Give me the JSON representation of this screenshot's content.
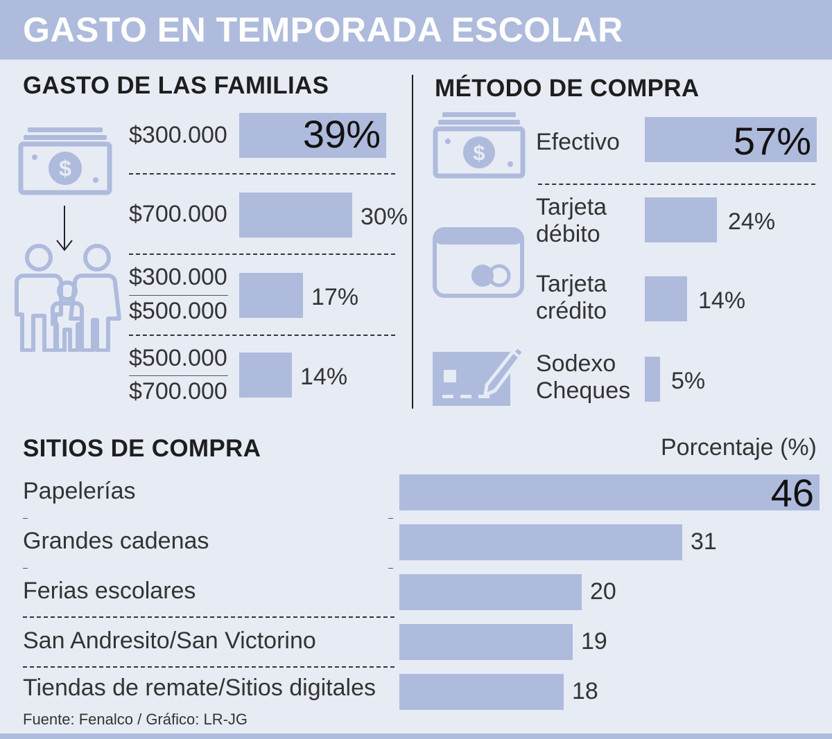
{
  "title": "GASTO EN TEMPORADA ESCOLAR",
  "source": "Fuente: Fenalco / Gráfico: LR-JG",
  "chart_data": [
    {
      "type": "bar",
      "title": "GASTO DE LAS FAMILIAS",
      "categories": [
        {
          "top": "$300.000",
          "bottom": ""
        },
        {
          "top": "$700.000",
          "bottom": ""
        },
        {
          "top": "$300.000",
          "bottom": "$500.000"
        },
        {
          "top": "$500.000",
          "bottom": "$700.000"
        }
      ],
      "values": [
        39,
        30,
        17,
        14
      ],
      "labels": [
        "39%",
        "30%",
        "17%",
        "14%"
      ]
    },
    {
      "type": "bar",
      "title": "MÉTODO DE COMPRA",
      "categories": [
        {
          "line1": "Efectivo",
          "line2": ""
        },
        {
          "line1": "Tarjeta",
          "line2": "débito"
        },
        {
          "line1": "Tarjeta",
          "line2": "crédito"
        },
        {
          "line1": "Sodexo",
          "line2": "Cheques"
        }
      ],
      "values": [
        57,
        24,
        14,
        5
      ],
      "labels": [
        "57%",
        "24%",
        "14%",
        "5%"
      ]
    },
    {
      "type": "bar",
      "title": "SITIOS DE COMPRA",
      "unit_label": "Porcentaje (%)",
      "categories": [
        "Papelerías",
        "Grandes cadenas",
        "Ferias escolares",
        "San Andresito/San Victorino",
        "Tiendas de remate/Sitios digitales"
      ],
      "values": [
        46,
        31,
        20,
        19,
        18
      ],
      "labels": [
        "46",
        "31",
        "20",
        "19",
        "18"
      ]
    }
  ],
  "colors": {
    "bar": "#aebbdd",
    "background": "#e7ebf4",
    "icon": "#aebbdd"
  }
}
